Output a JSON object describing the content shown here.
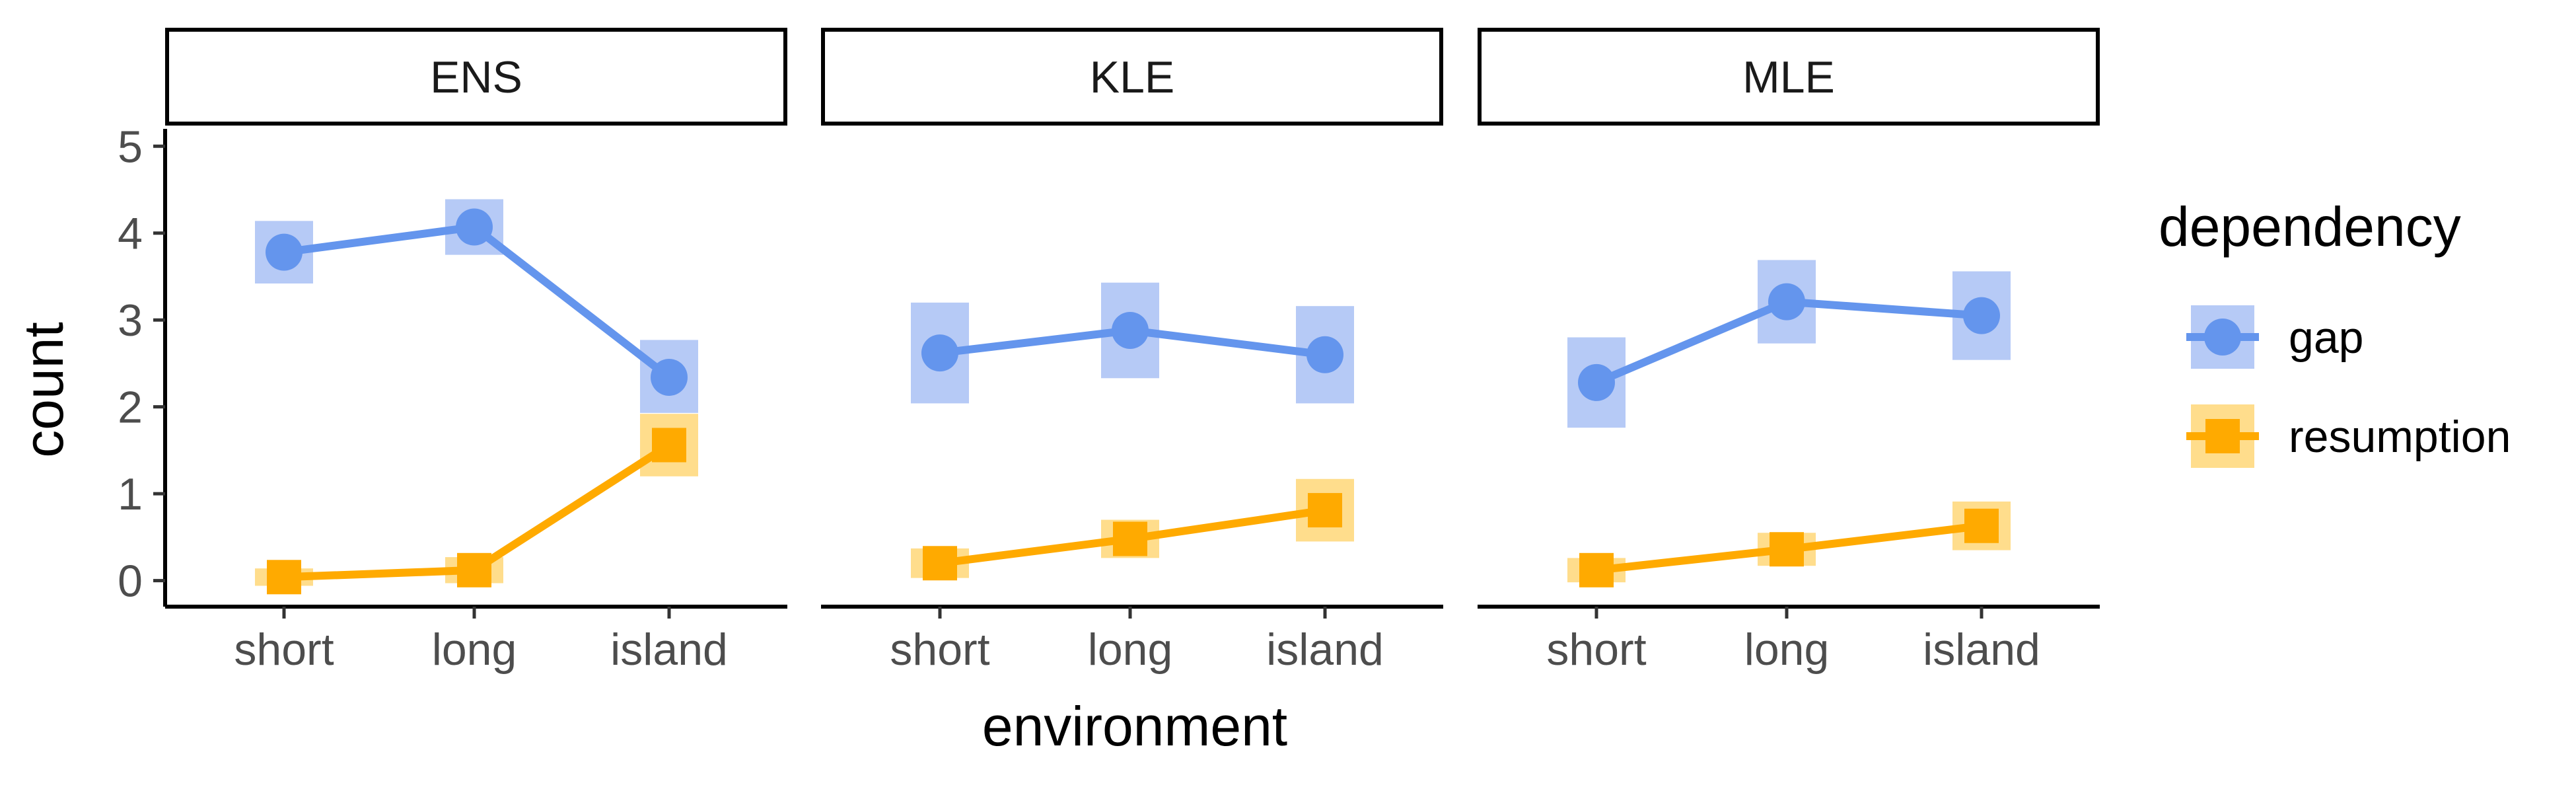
{
  "chart_data": {
    "type": "line",
    "facets": [
      {
        "label": "ENS",
        "series": [
          {
            "name": "gap",
            "values": [
              3.78,
              4.07,
              2.34
            ],
            "ci": [
              [
                3.42,
                4.14
              ],
              [
                3.75,
                4.39
              ],
              [
                1.93,
                2.77
              ]
            ]
          },
          {
            "name": "resumption",
            "values": [
              0.04,
              0.12,
              1.56
            ],
            "ci": [
              [
                -0.06,
                0.14
              ],
              [
                -0.03,
                0.27
              ],
              [
                1.2,
                1.92
              ]
            ]
          }
        ]
      },
      {
        "label": "KLE",
        "series": [
          {
            "name": "gap",
            "values": [
              2.62,
              2.88,
              2.6
            ],
            "ci": [
              [
                2.04,
                3.2
              ],
              [
                2.33,
                3.43
              ],
              [
                2.04,
                3.16
              ]
            ]
          },
          {
            "name": "resumption",
            "values": [
              0.2,
              0.48,
              0.81
            ],
            "ci": [
              [
                0.03,
                0.37
              ],
              [
                0.26,
                0.7
              ],
              [
                0.45,
                1.17
              ]
            ]
          }
        ]
      },
      {
        "label": "MLE",
        "series": [
          {
            "name": "gap",
            "values": [
              2.28,
              3.21,
              3.05
            ],
            "ci": [
              [
                1.76,
                2.8
              ],
              [
                2.73,
                3.69
              ],
              [
                2.54,
                3.56
              ]
            ]
          },
          {
            "name": "resumption",
            "values": [
              0.12,
              0.36,
              0.63
            ],
            "ci": [
              [
                -0.02,
                0.26
              ],
              [
                0.17,
                0.55
              ],
              [
                0.35,
                0.91
              ]
            ]
          }
        ]
      }
    ],
    "categories": [
      "short",
      "long",
      "island"
    ],
    "xlabel": "environment",
    "ylabel": "count",
    "ylim": [
      -0.3,
      5.2
    ],
    "yticks": [
      0,
      1,
      2,
      3,
      4,
      5
    ],
    "grid": false,
    "legend": {
      "title": "dependency",
      "placement": "right",
      "entries": [
        "gap",
        "resumption"
      ]
    },
    "colors": {
      "gap": "#6495ED",
      "gap_ci": "#AEC4F5",
      "resumption": "#FFAA00",
      "resumption_ci": "#FFD97F",
      "axis": "#000000",
      "tick_text": "#4D4D4D"
    }
  }
}
